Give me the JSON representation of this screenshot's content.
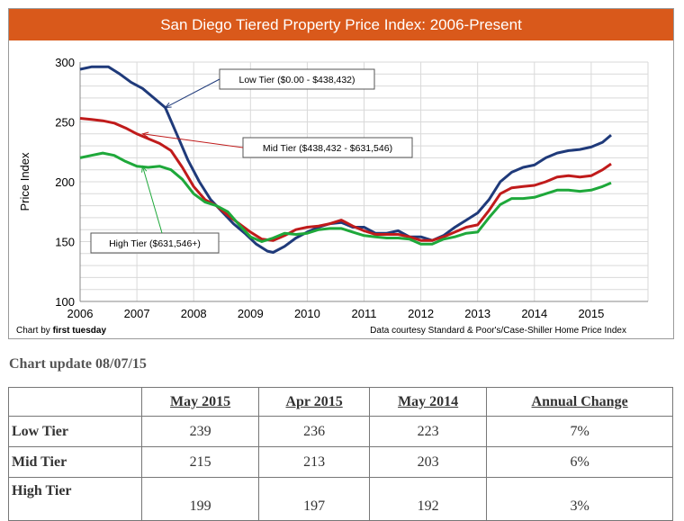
{
  "chart_data": {
    "type": "line",
    "title": "San Diego Tiered Property Price Index: 2006-Present",
    "ylabel": "Price Index",
    "xlabel": "",
    "ylim": [
      100,
      300
    ],
    "xlim": [
      2006,
      2016
    ],
    "yticks": [
      100,
      150,
      200,
      250,
      300
    ],
    "xticks": [
      "2006",
      "2007",
      "2008",
      "2009",
      "2010",
      "2011",
      "2012",
      "2013",
      "2014",
      "2015"
    ],
    "grid": true,
    "series": [
      {
        "name": "Low Tier ($0.00 - $438,432)",
        "color": "#1f3a7a",
        "points": [
          [
            2006.0,
            294
          ],
          [
            2006.2,
            296
          ],
          [
            2006.5,
            296
          ],
          [
            2006.7,
            290
          ],
          [
            2006.9,
            283
          ],
          [
            2007.1,
            278
          ],
          [
            2007.3,
            270
          ],
          [
            2007.5,
            262
          ],
          [
            2007.7,
            240
          ],
          [
            2007.9,
            218
          ],
          [
            2008.1,
            200
          ],
          [
            2008.3,
            185
          ],
          [
            2008.5,
            175
          ],
          [
            2008.7,
            165
          ],
          [
            2008.9,
            157
          ],
          [
            2009.1,
            148
          ],
          [
            2009.3,
            142
          ],
          [
            2009.4,
            141
          ],
          [
            2009.6,
            146
          ],
          [
            2009.8,
            153
          ],
          [
            2010.0,
            158
          ],
          [
            2010.2,
            162
          ],
          [
            2010.4,
            165
          ],
          [
            2010.6,
            166
          ],
          [
            2010.8,
            162
          ],
          [
            2011.0,
            162
          ],
          [
            2011.2,
            157
          ],
          [
            2011.4,
            157
          ],
          [
            2011.6,
            159
          ],
          [
            2011.8,
            154
          ],
          [
            2012.0,
            154
          ],
          [
            2012.2,
            151
          ],
          [
            2012.4,
            155
          ],
          [
            2012.6,
            162
          ],
          [
            2012.8,
            168
          ],
          [
            2013.0,
            174
          ],
          [
            2013.2,
            185
          ],
          [
            2013.4,
            200
          ],
          [
            2013.6,
            208
          ],
          [
            2013.8,
            212
          ],
          [
            2014.0,
            214
          ],
          [
            2014.2,
            220
          ],
          [
            2014.4,
            224
          ],
          [
            2014.6,
            226
          ],
          [
            2014.8,
            227
          ],
          [
            2015.0,
            229
          ],
          [
            2015.2,
            233
          ],
          [
            2015.35,
            239
          ]
        ]
      },
      {
        "name": "Mid Tier ($438,432 - $631,546)",
        "color": "#c01b1b",
        "points": [
          [
            2006.0,
            253
          ],
          [
            2006.2,
            252
          ],
          [
            2006.4,
            251
          ],
          [
            2006.6,
            249
          ],
          [
            2006.8,
            245
          ],
          [
            2007.0,
            240
          ],
          [
            2007.2,
            236
          ],
          [
            2007.4,
            232
          ],
          [
            2007.6,
            226
          ],
          [
            2007.8,
            212
          ],
          [
            2008.0,
            196
          ],
          [
            2008.2,
            185
          ],
          [
            2008.4,
            180
          ],
          [
            2008.6,
            172
          ],
          [
            2008.8,
            165
          ],
          [
            2009.0,
            158
          ],
          [
            2009.2,
            152
          ],
          [
            2009.4,
            151
          ],
          [
            2009.6,
            155
          ],
          [
            2009.8,
            160
          ],
          [
            2010.0,
            162
          ],
          [
            2010.2,
            163
          ],
          [
            2010.4,
            165
          ],
          [
            2010.6,
            168
          ],
          [
            2010.8,
            163
          ],
          [
            2011.0,
            159
          ],
          [
            2011.2,
            156
          ],
          [
            2011.4,
            156
          ],
          [
            2011.6,
            156
          ],
          [
            2011.8,
            154
          ],
          [
            2012.0,
            151
          ],
          [
            2012.2,
            151
          ],
          [
            2012.4,
            154
          ],
          [
            2012.6,
            158
          ],
          [
            2012.8,
            162
          ],
          [
            2013.0,
            164
          ],
          [
            2013.2,
            176
          ],
          [
            2013.4,
            190
          ],
          [
            2013.6,
            195
          ],
          [
            2013.8,
            196
          ],
          [
            2014.0,
            197
          ],
          [
            2014.2,
            200
          ],
          [
            2014.4,
            204
          ],
          [
            2014.6,
            205
          ],
          [
            2014.8,
            204
          ],
          [
            2015.0,
            205
          ],
          [
            2015.2,
            210
          ],
          [
            2015.35,
            215
          ]
        ]
      },
      {
        "name": "High Tier ($631,546+)",
        "color": "#1ea83a",
        "points": [
          [
            2006.0,
            220
          ],
          [
            2006.2,
            222
          ],
          [
            2006.4,
            224
          ],
          [
            2006.6,
            222
          ],
          [
            2006.8,
            217
          ],
          [
            2007.0,
            213
          ],
          [
            2007.2,
            212
          ],
          [
            2007.4,
            213
          ],
          [
            2007.6,
            210
          ],
          [
            2007.8,
            202
          ],
          [
            2008.0,
            190
          ],
          [
            2008.2,
            183
          ],
          [
            2008.4,
            180
          ],
          [
            2008.6,
            175
          ],
          [
            2008.8,
            164
          ],
          [
            2009.0,
            154
          ],
          [
            2009.2,
            150
          ],
          [
            2009.4,
            153
          ],
          [
            2009.6,
            157
          ],
          [
            2009.8,
            156
          ],
          [
            2010.0,
            157
          ],
          [
            2010.2,
            160
          ],
          [
            2010.4,
            161
          ],
          [
            2010.6,
            161
          ],
          [
            2010.8,
            158
          ],
          [
            2011.0,
            155
          ],
          [
            2011.2,
            154
          ],
          [
            2011.4,
            153
          ],
          [
            2011.6,
            153
          ],
          [
            2011.8,
            152
          ],
          [
            2012.0,
            148
          ],
          [
            2012.2,
            148
          ],
          [
            2012.4,
            152
          ],
          [
            2012.6,
            154
          ],
          [
            2012.8,
            157
          ],
          [
            2013.0,
            158
          ],
          [
            2013.2,
            170
          ],
          [
            2013.4,
            181
          ],
          [
            2013.6,
            186
          ],
          [
            2013.8,
            186
          ],
          [
            2014.0,
            187
          ],
          [
            2014.2,
            190
          ],
          [
            2014.4,
            193
          ],
          [
            2014.6,
            193
          ],
          [
            2014.8,
            192
          ],
          [
            2015.0,
            193
          ],
          [
            2015.2,
            196
          ],
          [
            2015.35,
            199
          ]
        ]
      }
    ],
    "annotations": [
      {
        "text": "Low Tier ($0.00 - $438,432)",
        "series": 0
      },
      {
        "text": "Mid Tier ($438,432 - $631,546)",
        "series": 1
      },
      {
        "text": "High Tier ($631,546+)",
        "series": 2
      }
    ]
  },
  "footer": {
    "credit_prefix": "Chart by ",
    "credit_brand": "first tuesday",
    "source": "Data courtesy Standard & Poor's/Case-Shiller Home Price Index"
  },
  "update_heading": "Chart update 08/07/15",
  "table": {
    "headers": [
      "",
      "May 2015",
      "Apr 2015",
      "May 2014",
      "Annual Change"
    ],
    "rows": [
      {
        "label": "Low Tier",
        "values": [
          "239",
          "236",
          "223",
          "7%"
        ]
      },
      {
        "label": "Mid Tier",
        "values": [
          "215",
          "213",
          "203",
          "6%"
        ]
      },
      {
        "label": "High Tier",
        "values": [
          "199",
          "197",
          "192",
          "3%"
        ]
      }
    ]
  }
}
